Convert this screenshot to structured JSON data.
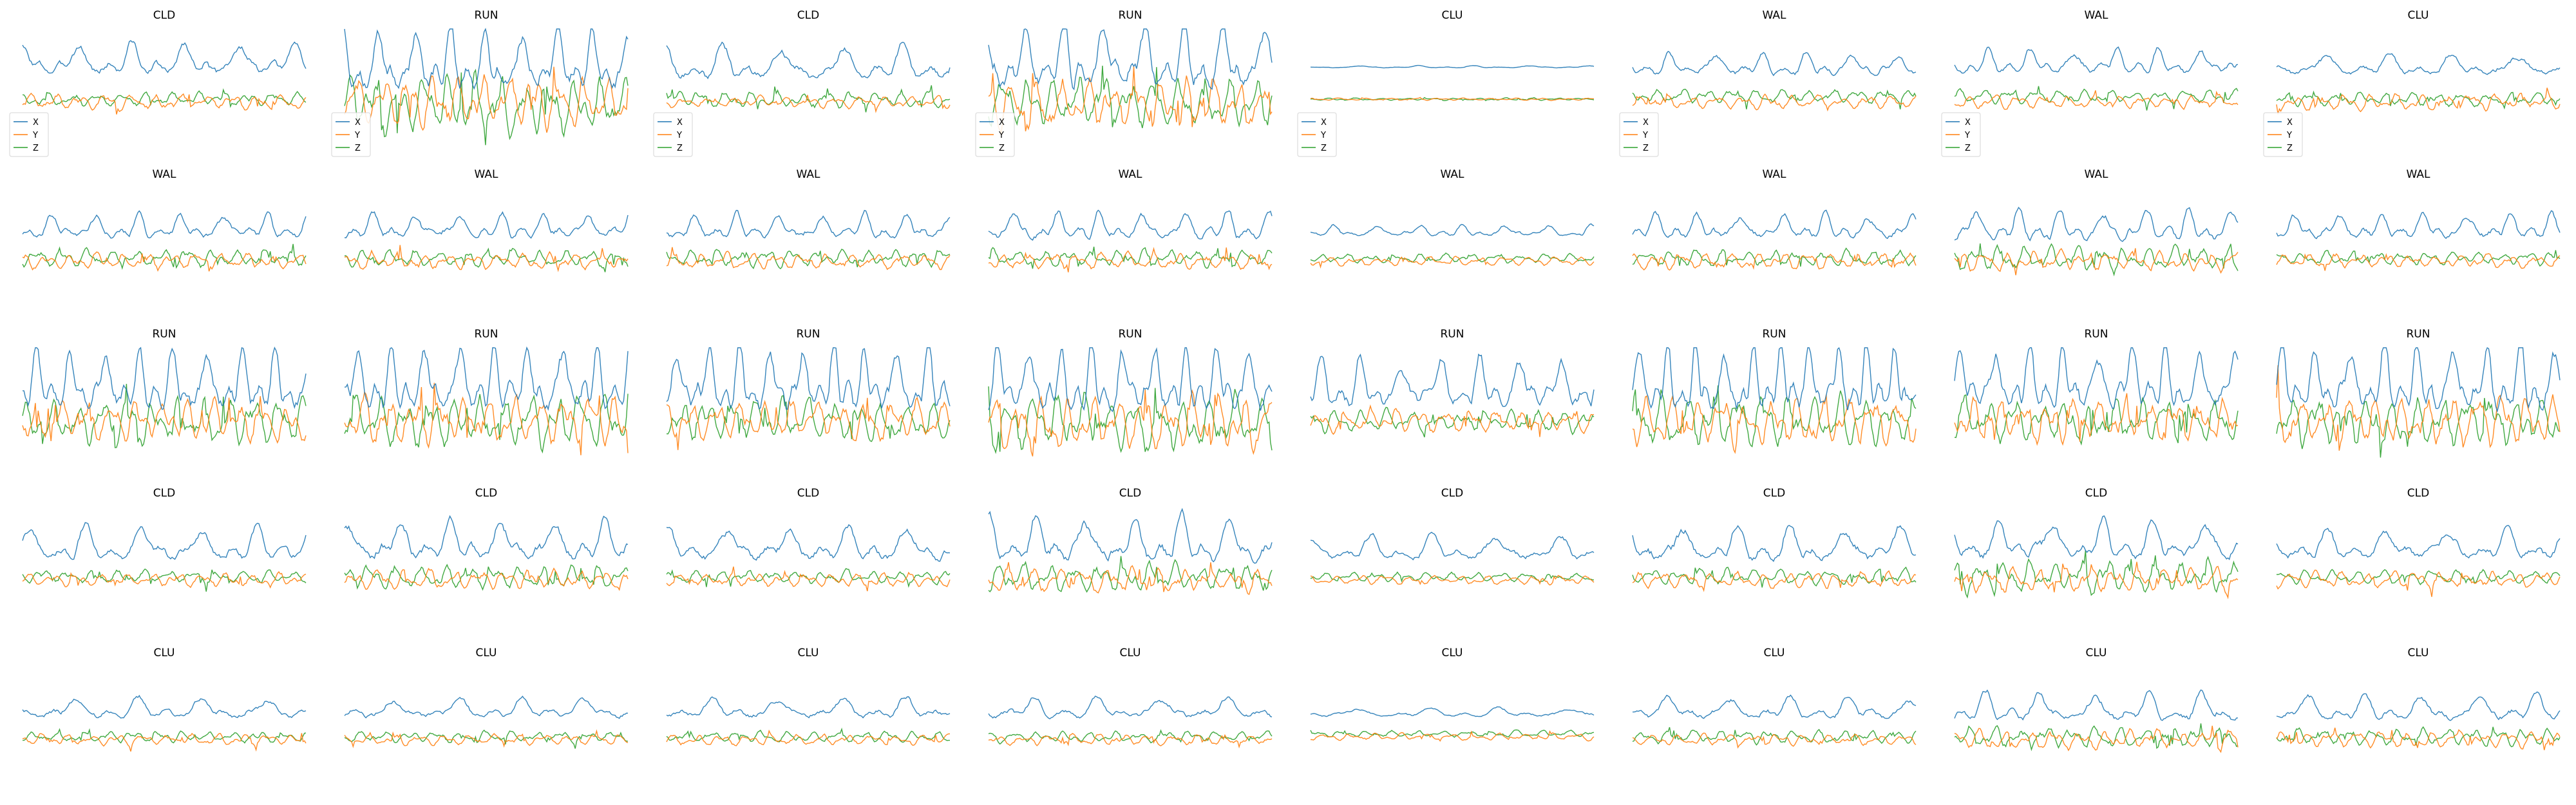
{
  "figure": {
    "rows": 5,
    "cols": 8,
    "colors": {
      "X": "#1f77b4",
      "Y": "#ff7f0e",
      "Z": "#2ca02c"
    }
  },
  "legend": {
    "entries": [
      "X",
      "Y",
      "Z"
    ],
    "shown_on_row": 0,
    "placement": "lower-left"
  },
  "chart_data": {
    "type": "line",
    "axes_visible": false,
    "series_names": [
      "X",
      "Y",
      "Z"
    ],
    "samples_per_panel": 200,
    "panels": [
      {
        "title": "CLD",
        "x": {
          "mean": 0.62,
          "amp": 0.28,
          "period": 38
        },
        "y": {
          "mean": -0.05,
          "amp": 0.14
        },
        "z": {
          "mean": 0.0,
          "amp": 0.12
        }
      },
      {
        "title": "RUN",
        "x": {
          "mean": 0.55,
          "amp": 0.55,
          "period": 25
        },
        "y": {
          "mean": -0.05,
          "amp": 0.45
        },
        "z": {
          "mean": -0.1,
          "amp": 0.5
        }
      },
      {
        "title": "CLD",
        "x": {
          "mean": 0.55,
          "amp": 0.3,
          "period": 42
        },
        "y": {
          "mean": -0.05,
          "amp": 0.1
        },
        "z": {
          "mean": 0.0,
          "amp": 0.15
        }
      },
      {
        "title": "RUN",
        "x": {
          "mean": 0.6,
          "amp": 0.6,
          "period": 28
        },
        "y": {
          "mean": -0.1,
          "amp": 0.45
        },
        "z": {
          "mean": -0.05,
          "amp": 0.45
        }
      },
      {
        "title": "CLU",
        "x": {
          "mean": 0.55,
          "amp": 0.02,
          "period": 40
        },
        "y": {
          "mean": 0.0,
          "amp": 0.02
        },
        "z": {
          "mean": 0.0,
          "amp": 0.02
        }
      },
      {
        "title": "WAL",
        "x": {
          "mean": 0.55,
          "amp": 0.2,
          "period": 32
        },
        "y": {
          "mean": -0.05,
          "amp": 0.12
        },
        "z": {
          "mean": 0.05,
          "amp": 0.12
        }
      },
      {
        "title": "WAL",
        "x": {
          "mean": 0.6,
          "amp": 0.22,
          "period": 30
        },
        "y": {
          "mean": -0.05,
          "amp": 0.12
        },
        "z": {
          "mean": 0.05,
          "amp": 0.12
        }
      },
      {
        "title": "CLU",
        "x": {
          "mean": 0.55,
          "amp": 0.18,
          "period": 45
        },
        "y": {
          "mean": -0.05,
          "amp": 0.15
        },
        "z": {
          "mean": 0.0,
          "amp": 0.12
        }
      },
      {
        "title": "WAL",
        "x": {
          "mean": 0.5,
          "amp": 0.22,
          "period": 30
        },
        "y": {
          "mean": -0.05,
          "amp": 0.15
        },
        "z": {
          "mean": 0.0,
          "amp": 0.15
        }
      },
      {
        "title": "WAL",
        "x": {
          "mean": 0.5,
          "amp": 0.22,
          "period": 30
        },
        "y": {
          "mean": -0.05,
          "amp": 0.15
        },
        "z": {
          "mean": 0.0,
          "amp": 0.15
        }
      },
      {
        "title": "WAL",
        "x": {
          "mean": 0.5,
          "amp": 0.22,
          "period": 30
        },
        "y": {
          "mean": -0.05,
          "amp": 0.15
        },
        "z": {
          "mean": 0.0,
          "amp": 0.15
        }
      },
      {
        "title": "WAL",
        "x": {
          "mean": 0.5,
          "amp": 0.25,
          "period": 30
        },
        "y": {
          "mean": -0.05,
          "amp": 0.15
        },
        "z": {
          "mean": 0.0,
          "amp": 0.15
        }
      },
      {
        "title": "WAL",
        "x": {
          "mean": 0.45,
          "amp": 0.1,
          "period": 30
        },
        "y": {
          "mean": -0.05,
          "amp": 0.08
        },
        "z": {
          "mean": 0.0,
          "amp": 0.08
        }
      },
      {
        "title": "WAL",
        "x": {
          "mean": 0.5,
          "amp": 0.22,
          "period": 30
        },
        "y": {
          "mean": -0.05,
          "amp": 0.15
        },
        "z": {
          "mean": 0.0,
          "amp": 0.15
        }
      },
      {
        "title": "WAL",
        "x": {
          "mean": 0.5,
          "amp": 0.28,
          "period": 30
        },
        "y": {
          "mean": -0.05,
          "amp": 0.18
        },
        "z": {
          "mean": 0.0,
          "amp": 0.22
        }
      },
      {
        "title": "WAL",
        "x": {
          "mean": 0.5,
          "amp": 0.22,
          "period": 30
        },
        "y": {
          "mean": -0.05,
          "amp": 0.12
        },
        "z": {
          "mean": 0.0,
          "amp": 0.12
        }
      },
      {
        "title": "RUN",
        "x": {
          "mean": 0.55,
          "amp": 0.55,
          "period": 24
        },
        "y": {
          "mean": -0.05,
          "amp": 0.35
        },
        "z": {
          "mean": -0.05,
          "amp": 0.4
        }
      },
      {
        "title": "RUN",
        "x": {
          "mean": 0.55,
          "amp": 0.6,
          "period": 24
        },
        "y": {
          "mean": -0.05,
          "amp": 0.45
        },
        "z": {
          "mean": -0.05,
          "amp": 0.45
        }
      },
      {
        "title": "RUN",
        "x": {
          "mean": 0.55,
          "amp": 0.6,
          "period": 22
        },
        "y": {
          "mean": -0.05,
          "amp": 0.35
        },
        "z": {
          "mean": -0.05,
          "amp": 0.35
        }
      },
      {
        "title": "RUN",
        "x": {
          "mean": 0.55,
          "amp": 0.6,
          "period": 22
        },
        "y": {
          "mean": -0.1,
          "amp": 0.5
        },
        "z": {
          "mean": -0.1,
          "amp": 0.5
        }
      },
      {
        "title": "RUN",
        "x": {
          "mean": 0.5,
          "amp": 0.45,
          "period": 28
        },
        "y": {
          "mean": -0.05,
          "amp": 0.2
        },
        "z": {
          "mean": -0.05,
          "amp": 0.2
        }
      },
      {
        "title": "RUN",
        "x": {
          "mean": 0.55,
          "amp": 0.6,
          "period": 20
        },
        "y": {
          "mean": -0.05,
          "amp": 0.45
        },
        "z": {
          "mean": -0.05,
          "amp": 0.5
        }
      },
      {
        "title": "RUN",
        "x": {
          "mean": 0.55,
          "amp": 0.55,
          "period": 24
        },
        "y": {
          "mean": -0.05,
          "amp": 0.4
        },
        "z": {
          "mean": -0.05,
          "amp": 0.4
        }
      },
      {
        "title": "RUN",
        "x": {
          "mean": 0.55,
          "amp": 0.6,
          "period": 24
        },
        "y": {
          "mean": -0.05,
          "amp": 0.45
        },
        "z": {
          "mean": -0.05,
          "amp": 0.45
        }
      },
      {
        "title": "CLD",
        "x": {
          "mean": 0.5,
          "amp": 0.3,
          "period": 40
        },
        "y": {
          "mean": -0.05,
          "amp": 0.12
        },
        "z": {
          "mean": 0.0,
          "amp": 0.12
        }
      },
      {
        "title": "CLD",
        "x": {
          "mean": 0.55,
          "amp": 0.35,
          "period": 36
        },
        "y": {
          "mean": -0.05,
          "amp": 0.18
        },
        "z": {
          "mean": 0.0,
          "amp": 0.2
        }
      },
      {
        "title": "CLD",
        "x": {
          "mean": 0.5,
          "amp": 0.3,
          "period": 42
        },
        "y": {
          "mean": -0.05,
          "amp": 0.12
        },
        "z": {
          "mean": 0.0,
          "amp": 0.12
        }
      },
      {
        "title": "CLD",
        "x": {
          "mean": 0.55,
          "amp": 0.4,
          "period": 34
        },
        "y": {
          "mean": -0.05,
          "amp": 0.22
        },
        "z": {
          "mean": 0.0,
          "amp": 0.25
        }
      },
      {
        "title": "CLD",
        "x": {
          "mean": 0.45,
          "amp": 0.22,
          "period": 44
        },
        "y": {
          "mean": -0.05,
          "amp": 0.08
        },
        "z": {
          "mean": 0.0,
          "amp": 0.08
        }
      },
      {
        "title": "CLD",
        "x": {
          "mean": 0.5,
          "amp": 0.32,
          "period": 38
        },
        "y": {
          "mean": -0.05,
          "amp": 0.15
        },
        "z": {
          "mean": 0.0,
          "amp": 0.15
        }
      },
      {
        "title": "CLD",
        "x": {
          "mean": 0.55,
          "amp": 0.35,
          "period": 36
        },
        "y": {
          "mean": -0.05,
          "amp": 0.22
        },
        "z": {
          "mean": 0.0,
          "amp": 0.3
        }
      },
      {
        "title": "CLD",
        "x": {
          "mean": 0.5,
          "amp": 0.25,
          "period": 42
        },
        "y": {
          "mean": -0.05,
          "amp": 0.15
        },
        "z": {
          "mean": 0.0,
          "amp": 0.12
        }
      },
      {
        "title": "CLU",
        "x": {
          "mean": 0.45,
          "amp": 0.18,
          "period": 45
        },
        "y": {
          "mean": -0.05,
          "amp": 0.1
        },
        "z": {
          "mean": 0.0,
          "amp": 0.1
        }
      },
      {
        "title": "CLU",
        "x": {
          "mean": 0.45,
          "amp": 0.18,
          "period": 45
        },
        "y": {
          "mean": -0.05,
          "amp": 0.1
        },
        "z": {
          "mean": 0.0,
          "amp": 0.1
        }
      },
      {
        "title": "CLU",
        "x": {
          "mean": 0.45,
          "amp": 0.18,
          "period": 45
        },
        "y": {
          "mean": -0.05,
          "amp": 0.1
        },
        "z": {
          "mean": 0.0,
          "amp": 0.1
        }
      },
      {
        "title": "CLU",
        "x": {
          "mean": 0.45,
          "amp": 0.18,
          "period": 45
        },
        "y": {
          "mean": -0.05,
          "amp": 0.1
        },
        "z": {
          "mean": 0.0,
          "amp": 0.1
        }
      },
      {
        "title": "CLU",
        "x": {
          "mean": 0.4,
          "amp": 0.08,
          "period": 50
        },
        "y": {
          "mean": 0.0,
          "amp": 0.06
        },
        "z": {
          "mean": 0.05,
          "amp": 0.06
        }
      },
      {
        "title": "CLU",
        "x": {
          "mean": 0.45,
          "amp": 0.2,
          "period": 42
        },
        "y": {
          "mean": -0.05,
          "amp": 0.1
        },
        "z": {
          "mean": 0.0,
          "amp": 0.12
        }
      },
      {
        "title": "CLU",
        "x": {
          "mean": 0.45,
          "amp": 0.25,
          "period": 38
        },
        "y": {
          "mean": -0.05,
          "amp": 0.18
        },
        "z": {
          "mean": 0.0,
          "amp": 0.18
        }
      },
      {
        "title": "CLU",
        "x": {
          "mean": 0.45,
          "amp": 0.22,
          "period": 40
        },
        "y": {
          "mean": -0.05,
          "amp": 0.15
        },
        "z": {
          "mean": 0.0,
          "amp": 0.15
        }
      }
    ]
  }
}
